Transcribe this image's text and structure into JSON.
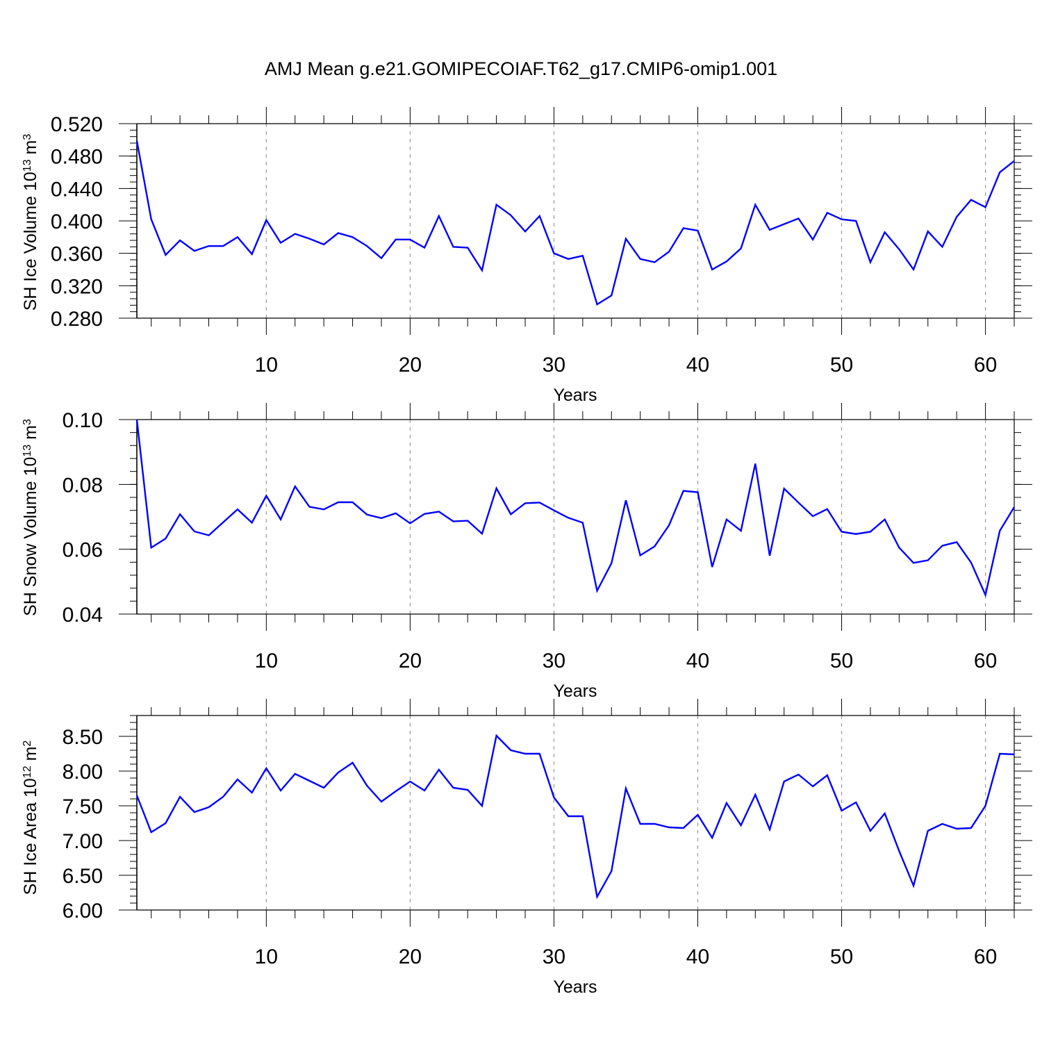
{
  "title": "AMJ Mean g.e21.GOMIPECOIAF.T62_g17.CMIP6-omip1.001",
  "colors": {
    "series": "#0000ff",
    "axis": "#000000",
    "grid": "#999999"
  },
  "chart_data": [
    {
      "type": "line",
      "ylabel": "SH Ice Volume 10",
      "ylabel_exp": "13",
      "ylabel_unit": " m",
      "ylabel_unit_exp": "3",
      "xlabel": "Years",
      "xlim": [
        1,
        62
      ],
      "ylim": [
        0.28,
        0.52
      ],
      "yticks": [
        "0.280",
        "0.320",
        "0.360",
        "0.400",
        "0.440",
        "0.480",
        "0.520"
      ],
      "xticks": [
        "10",
        "20",
        "30",
        "40",
        "50",
        "60"
      ],
      "grid": "vertical dashed at x ticks",
      "series": [
        {
          "x": [
            1,
            2,
            3,
            4,
            5,
            6,
            7,
            8,
            9,
            10,
            11,
            12,
            13,
            14,
            15,
            16,
            17,
            18,
            19,
            20,
            21,
            22,
            23,
            24,
            25,
            26,
            27,
            28,
            29,
            30,
            31,
            32,
            33,
            34,
            35,
            36,
            37,
            38,
            39,
            40,
            41,
            42,
            43,
            44,
            45,
            46,
            47,
            48,
            49,
            50,
            51,
            52,
            53,
            54,
            55,
            56,
            57,
            58,
            59,
            60,
            61,
            62
          ],
          "values": [
            0.499,
            0.402,
            0.358,
            0.376,
            0.363,
            0.369,
            0.369,
            0.38,
            0.359,
            0.401,
            0.373,
            0.384,
            0.378,
            0.371,
            0.385,
            0.38,
            0.369,
            0.354,
            0.377,
            0.377,
            0.367,
            0.406,
            0.368,
            0.367,
            0.339,
            0.42,
            0.407,
            0.387,
            0.406,
            0.36,
            0.353,
            0.357,
            0.297,
            0.308,
            0.378,
            0.353,
            0.349,
            0.362,
            0.391,
            0.388,
            0.34,
            0.35,
            0.366,
            0.42,
            0.389,
            0.396,
            0.403,
            0.377,
            0.41,
            0.402,
            0.4,
            0.349,
            0.386,
            0.365,
            0.34,
            0.387,
            0.368,
            0.405,
            0.426,
            0.417,
            0.46,
            0.474
          ]
        }
      ]
    },
    {
      "type": "line",
      "ylabel": "SH Snow Volume 10",
      "ylabel_exp": "13",
      "ylabel_unit": " m",
      "ylabel_unit_exp": "3",
      "xlabel": "Years",
      "xlim": [
        1,
        62
      ],
      "ylim": [
        0.04,
        0.1
      ],
      "yticks": [
        "0.04",
        "0.06",
        "0.08",
        "0.10"
      ],
      "xticks": [
        "10",
        "20",
        "30",
        "40",
        "50",
        "60"
      ],
      "grid": "vertical dashed at x ticks",
      "series": [
        {
          "x": [
            1,
            2,
            3,
            4,
            5,
            6,
            7,
            8,
            9,
            10,
            11,
            12,
            13,
            14,
            15,
            16,
            17,
            18,
            19,
            20,
            21,
            22,
            23,
            24,
            25,
            26,
            27,
            28,
            29,
            30,
            31,
            32,
            33,
            34,
            35,
            36,
            37,
            38,
            39,
            40,
            41,
            42,
            43,
            44,
            45,
            46,
            47,
            48,
            49,
            50,
            51,
            52,
            53,
            54,
            55,
            56,
            57,
            58,
            59,
            60,
            61,
            62
          ],
          "values": [
            0.1,
            0.0605,
            0.0633,
            0.0708,
            0.0655,
            0.0643,
            0.0683,
            0.0723,
            0.0682,
            0.0765,
            0.0692,
            0.0794,
            0.0731,
            0.0723,
            0.0745,
            0.0745,
            0.0707,
            0.0696,
            0.0711,
            0.068,
            0.0709,
            0.0716,
            0.0686,
            0.0688,
            0.0648,
            0.0788,
            0.0708,
            0.0742,
            0.0744,
            0.072,
            0.0697,
            0.0682,
            0.0472,
            0.0557,
            0.0751,
            0.0581,
            0.0609,
            0.0674,
            0.078,
            0.0776,
            0.0545,
            0.0692,
            0.0657,
            0.0864,
            0.058,
            0.0787,
            0.0744,
            0.0702,
            0.0724,
            0.0654,
            0.0647,
            0.0654,
            0.0692,
            0.0605,
            0.0558,
            0.0566,
            0.0611,
            0.0622,
            0.0559,
            0.0459,
            0.0657,
            0.073
          ]
        }
      ]
    },
    {
      "type": "line",
      "ylabel": "SH Ice Area 10",
      "ylabel_exp": "12",
      "ylabel_unit": " m",
      "ylabel_unit_exp": "2",
      "xlabel": "Years",
      "xlim": [
        1,
        62
      ],
      "ylim": [
        6.0,
        8.8
      ],
      "yticks": [
        "6.00",
        "6.50",
        "7.00",
        "7.50",
        "8.00",
        "8.50"
      ],
      "xticks": [
        "10",
        "20",
        "30",
        "40",
        "50",
        "60"
      ],
      "grid": "vertical dashed at x ticks",
      "series": [
        {
          "x": [
            1,
            2,
            3,
            4,
            5,
            6,
            7,
            8,
            9,
            10,
            11,
            12,
            13,
            14,
            15,
            16,
            17,
            18,
            19,
            20,
            21,
            22,
            23,
            24,
            25,
            26,
            27,
            28,
            29,
            30,
            31,
            32,
            33,
            34,
            35,
            36,
            37,
            38,
            39,
            40,
            41,
            42,
            43,
            44,
            45,
            46,
            47,
            48,
            49,
            50,
            51,
            52,
            53,
            54,
            55,
            56,
            57,
            58,
            59,
            60,
            61,
            62
          ],
          "values": [
            7.65,
            7.12,
            7.25,
            7.63,
            7.41,
            7.48,
            7.63,
            7.88,
            7.69,
            8.04,
            7.72,
            7.96,
            7.86,
            7.76,
            7.98,
            8.12,
            7.79,
            7.56,
            7.71,
            7.85,
            7.72,
            8.02,
            7.76,
            7.73,
            7.5,
            8.51,
            8.3,
            8.25,
            8.25,
            7.62,
            7.35,
            7.35,
            6.19,
            6.56,
            7.75,
            7.24,
            7.24,
            7.19,
            7.18,
            7.37,
            7.04,
            7.54,
            7.22,
            7.66,
            7.16,
            7.85,
            7.95,
            7.78,
            7.94,
            7.43,
            7.55,
            7.14,
            7.39,
            6.85,
            6.35,
            7.14,
            7.24,
            7.17,
            7.18,
            7.5,
            8.25,
            8.24
          ]
        }
      ]
    }
  ]
}
